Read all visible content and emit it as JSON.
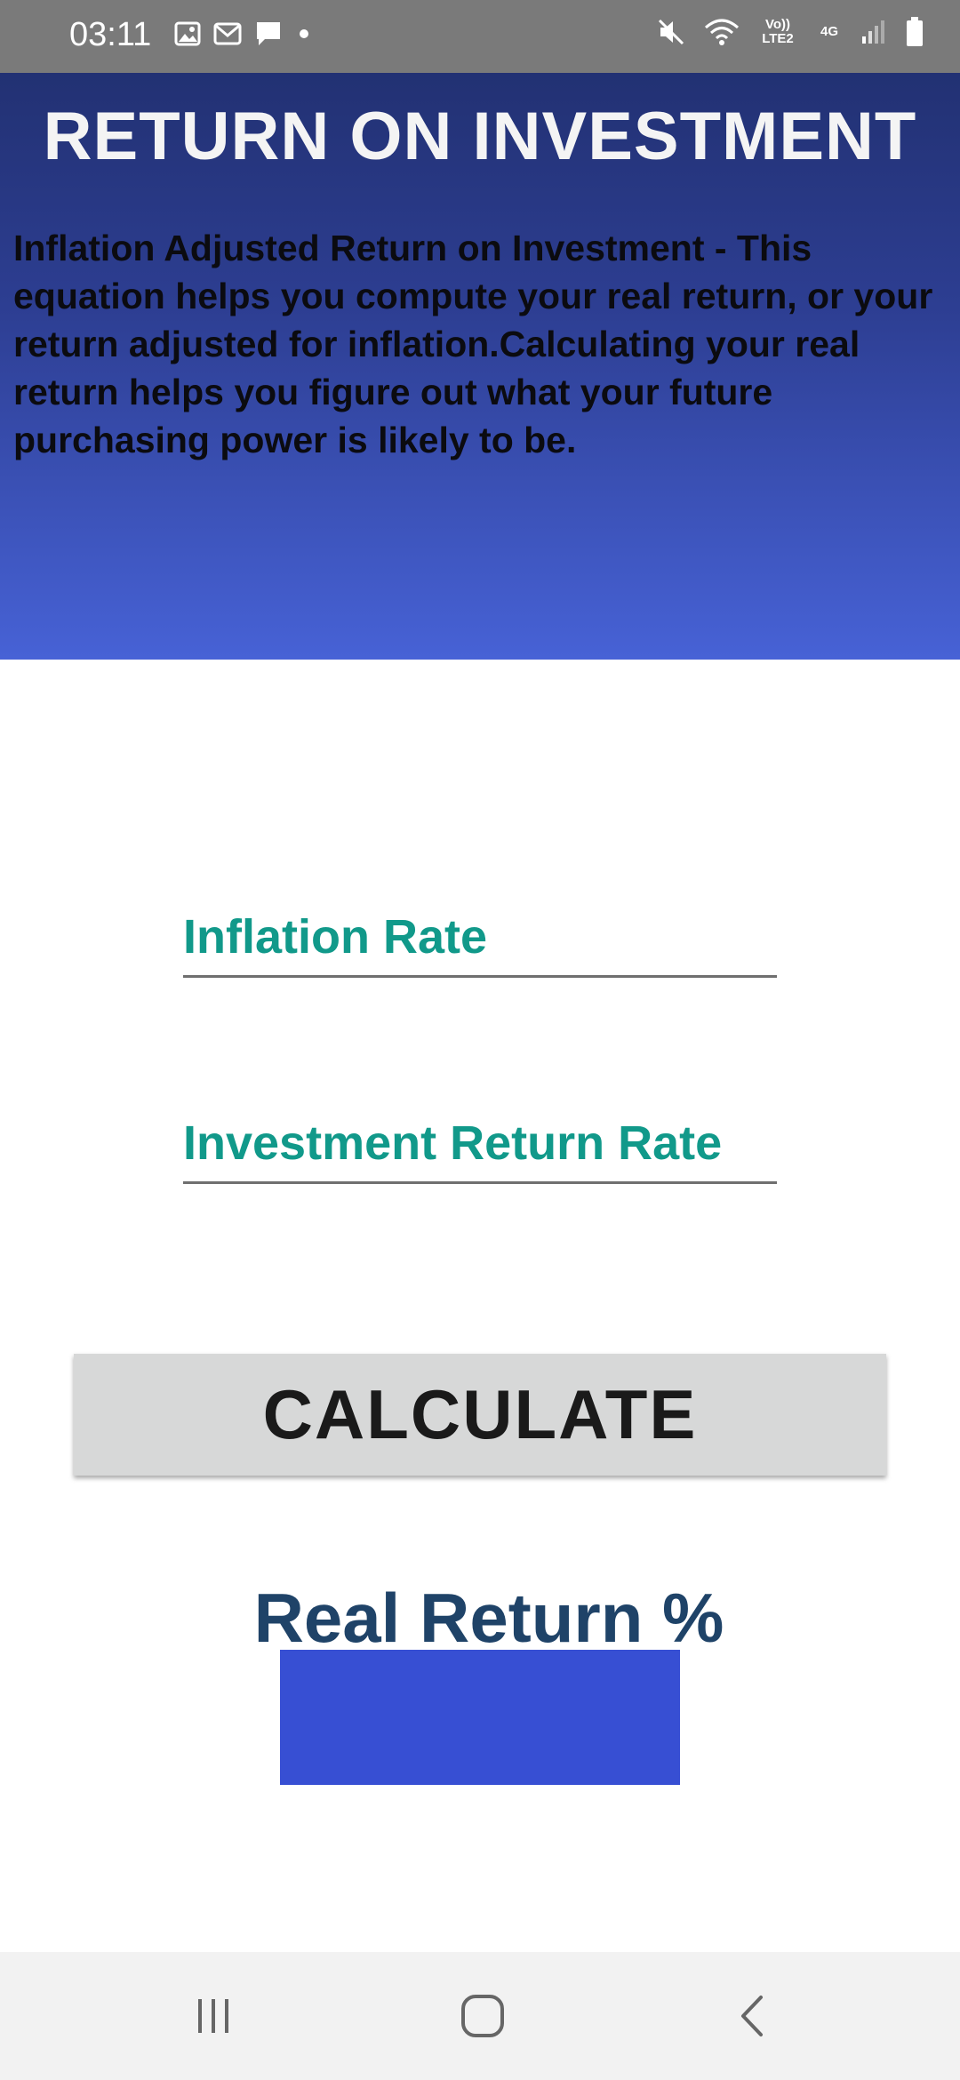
{
  "status_bar": {
    "time": "03:11",
    "left_icons": [
      "image-icon",
      "mail-icon",
      "chat-icon",
      "dot-icon"
    ],
    "right_icons": [
      "mute-icon",
      "wifi-icon",
      "volte-icon",
      "network-icon",
      "signal-icon",
      "battery-icon"
    ],
    "volte_label": "Vo)) LTE2",
    "network_label": "4G"
  },
  "header": {
    "title": "RETURN ON INVESTMENT",
    "description": "Inflation Adjusted Return on Investment - This equation helps you compute your real return, or your return adjusted for inflation.Calculating your real return helps you figure out what your future purchasing power is likely to be."
  },
  "form": {
    "inflation_placeholder": "Inflation Rate",
    "inflation_value": "",
    "investment_placeholder": "Investment Return Rate",
    "investment_value": "",
    "calculate_label": "CALCULATE"
  },
  "result": {
    "label": "Real Return %",
    "value": ""
  },
  "nav": {
    "icons": [
      "recent-apps-icon",
      "home-icon",
      "back-icon"
    ]
  },
  "colors": {
    "status_bar": "#7a7a7a",
    "header_top": "#223173",
    "header_bottom": "#4762d6",
    "field_text": "#11998a",
    "button_bg": "#d7d8d8",
    "result_label": "#1f4368",
    "result_box": "#374fd3"
  }
}
